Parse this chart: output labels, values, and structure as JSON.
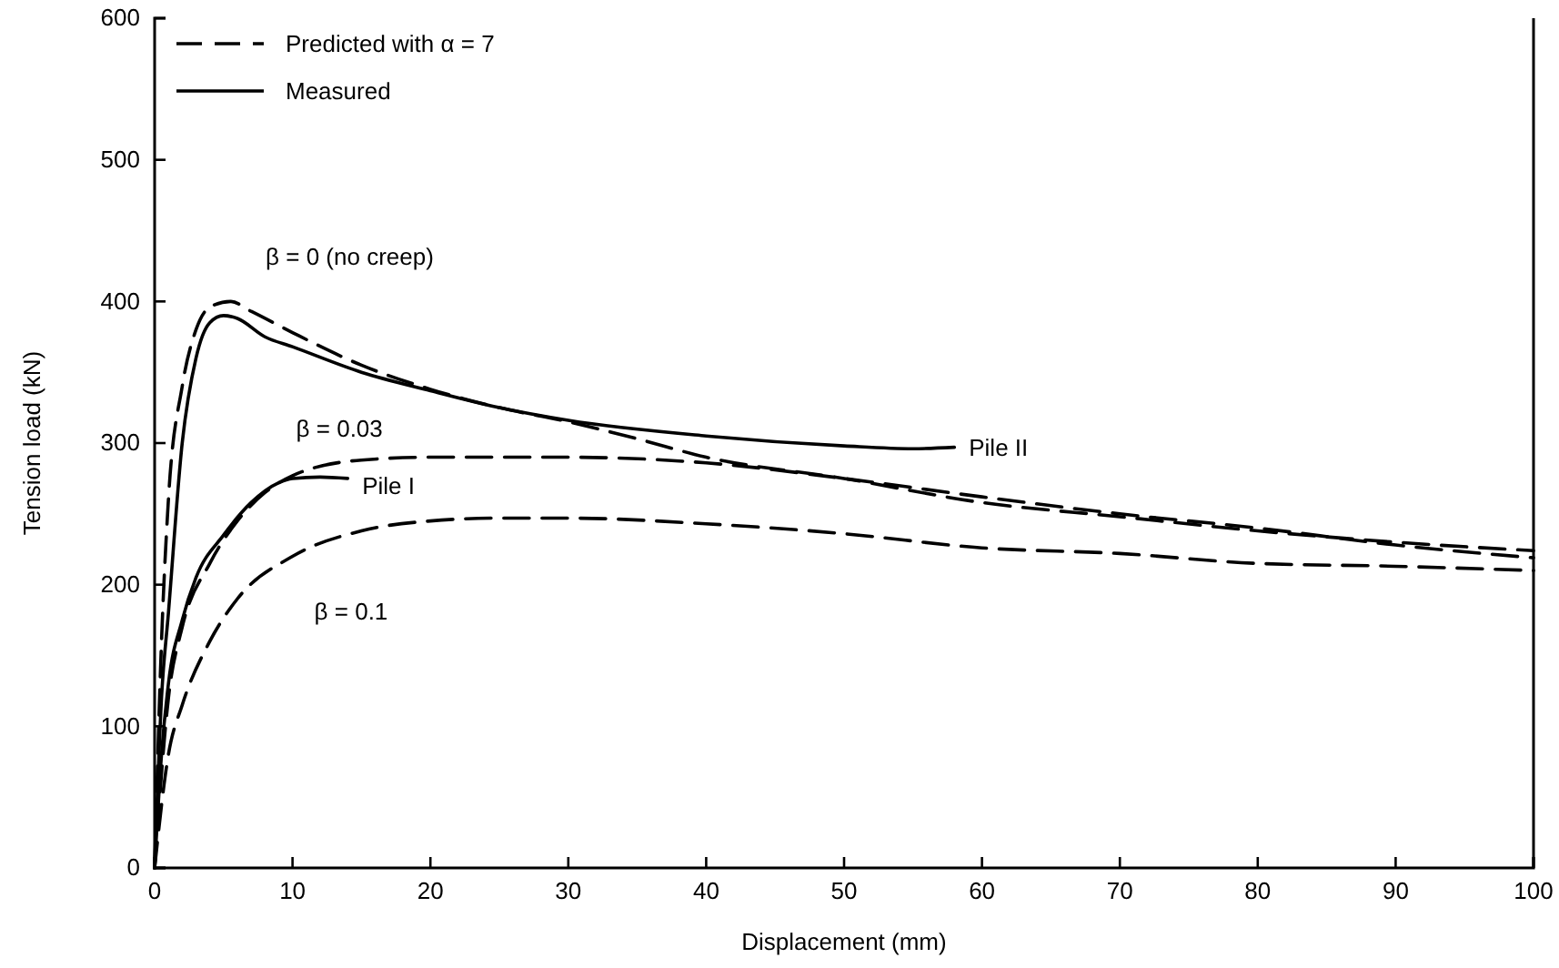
{
  "chart_data": {
    "type": "line",
    "xlabel": "Displacement (mm)",
    "ylabel": "Tension load (kN)",
    "xlim": [
      0,
      100
    ],
    "ylim": [
      0,
      600
    ],
    "xticks": [
      0,
      10,
      20,
      30,
      40,
      50,
      60,
      70,
      80,
      90,
      100
    ],
    "yticks": [
      0,
      100,
      200,
      300,
      400,
      500,
      600
    ],
    "grid": false,
    "legend": "top left",
    "marker": "none",
    "legend_title": null,
    "series": [
      {
        "name": "β = 0 (no creep)",
        "color": "#000000",
        "line_style": "dashed",
        "x": [
          0,
          0.5,
          1,
          2,
          3,
          4,
          5.5,
          7,
          10,
          15,
          20,
          25,
          30,
          35,
          40,
          50,
          60,
          70,
          80,
          90,
          100
        ],
        "values": [
          0,
          160,
          260,
          340,
          380,
          396,
          400,
          393,
          378,
          355,
          338,
          325,
          315,
          303,
          290,
          275,
          258,
          248,
          238,
          230,
          224
        ]
      },
      {
        "name": "Pile II",
        "color": "#000000",
        "line_style": "solid",
        "x": [
          0,
          0.5,
          1,
          2,
          3,
          4,
          5,
          6,
          8,
          10,
          15,
          20,
          25,
          30,
          40,
          50,
          55,
          58
        ],
        "values": [
          0,
          120,
          180,
          300,
          360,
          385,
          390,
          388,
          375,
          368,
          350,
          337,
          325,
          316,
          305,
          298,
          296,
          297
        ]
      },
      {
        "name": "β = 0.03",
        "color": "#000000",
        "line_style": "dashed",
        "x": [
          0,
          1,
          2,
          4,
          6,
          8,
          10,
          15,
          20,
          30,
          40,
          50,
          60,
          70,
          80,
          90,
          100
        ],
        "values": [
          0,
          120,
          170,
          215,
          245,
          265,
          277,
          288,
          290,
          290,
          286,
          275,
          262,
          250,
          240,
          228,
          219
        ]
      },
      {
        "name": "β = 0.1",
        "color": "#000000",
        "line_style": "dashed",
        "x": [
          0,
          1,
          2,
          4,
          6,
          10,
          15,
          20,
          25,
          30,
          40,
          50,
          60,
          70,
          80,
          90,
          100
        ],
        "values": [
          0,
          80,
          115,
          160,
          190,
          220,
          238,
          245,
          247,
          247,
          243,
          236,
          226,
          222,
          215,
          213,
          210
        ]
      },
      {
        "name": "Pile I",
        "color": "#000000",
        "line_style": "solid",
        "x": [
          0,
          0.5,
          1,
          2,
          3,
          5,
          7,
          9,
          10,
          12,
          14
        ],
        "values": [
          0,
          80,
          130,
          175,
          205,
          235,
          258,
          272,
          275,
          276,
          275
        ]
      }
    ],
    "annotations": [
      "Predicted with α = 7",
      "Measured"
    ]
  }
}
